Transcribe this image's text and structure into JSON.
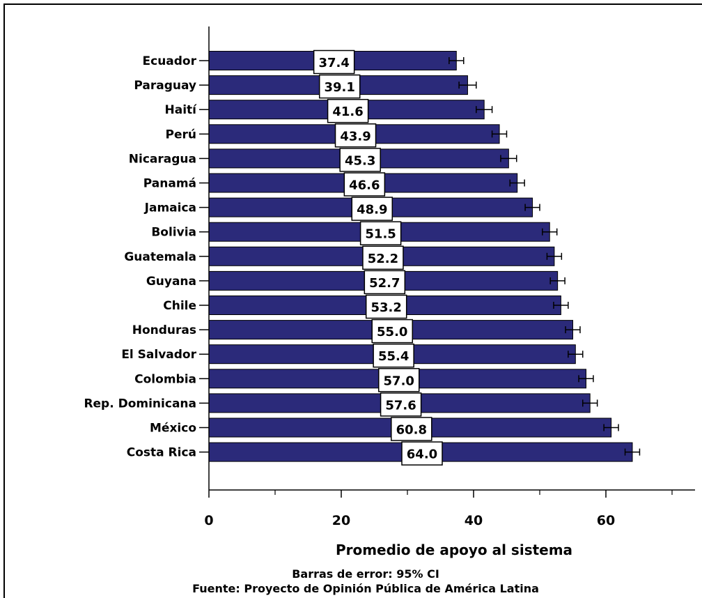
{
  "chart_data": {
    "type": "bar",
    "orientation": "horizontal",
    "categories": [
      "Ecuador",
      "Paraguay",
      "Haití",
      "Perú",
      "Nicaragua",
      "Panamá",
      "Jamaica",
      "Bolivia",
      "Guatemala",
      "Guyana",
      "Chile",
      "Honduras",
      "El Salvador",
      "Colombia",
      "Rep. Dominicana",
      "México",
      "Costa Rica"
    ],
    "values": [
      37.4,
      39.1,
      41.6,
      43.9,
      45.3,
      46.6,
      48.9,
      51.5,
      52.2,
      52.7,
      53.2,
      55.0,
      55.4,
      57.0,
      57.6,
      60.8,
      64.0
    ],
    "value_labels": [
      "37.4",
      "39.1",
      "41.6",
      "43.9",
      "45.3",
      "46.6",
      "48.9",
      "51.5",
      "52.2",
      "52.7",
      "53.2",
      "55.0",
      "55.4",
      "57.0",
      "57.6",
      "60.8",
      "64.0"
    ],
    "error_low": [
      36.3,
      37.8,
      40.4,
      42.8,
      44.1,
      45.5,
      47.8,
      50.4,
      51.1,
      51.6,
      52.1,
      53.9,
      54.3,
      55.9,
      56.5,
      59.7,
      62.9
    ],
    "error_high": [
      38.5,
      40.4,
      42.8,
      45.0,
      46.5,
      47.7,
      50.0,
      52.6,
      53.3,
      53.8,
      54.3,
      56.1,
      56.5,
      58.1,
      58.7,
      61.9,
      65.1
    ],
    "xlabel": "Promedio de apoyo al sistema",
    "ylabel": "",
    "xlim": [
      0,
      73
    ],
    "xticks": [
      0,
      20,
      40,
      60
    ],
    "x_minor_ticks": [
      10,
      30,
      50,
      70
    ],
    "grid": false,
    "bar_color": "#2b2a7a",
    "notes": [
      "Barras de error: 95% CI",
      "Fuente: Proyecto de Opinión Pública de América Latina"
    ]
  }
}
